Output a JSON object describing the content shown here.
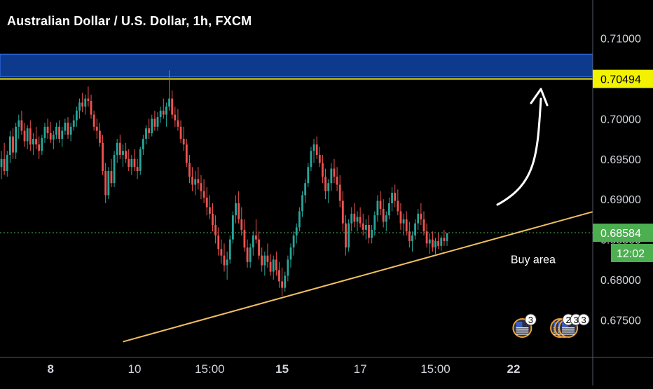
{
  "chart_data": {
    "type": "candlestick",
    "title": "Australian Dollar / U.S. Dollar, 1h, FXCM",
    "y_axis": {
      "position": "right",
      "min": 0.672,
      "max": 0.713,
      "tick_labels": [
        "0.71000",
        "0.70500",
        "0.70000",
        "0.69500",
        "0.69000",
        "0.68500",
        "0.68000",
        "0.67500"
      ],
      "tick_values": [
        0.71,
        0.705,
        0.7,
        0.695,
        0.69,
        0.685,
        0.68,
        0.675
      ]
    },
    "x_axis": {
      "tick_labels": [
        "8",
        "10",
        "15:00",
        "15",
        "17",
        "15:00",
        "22"
      ],
      "tick_index": [
        17,
        46,
        72,
        97,
        124,
        150,
        177
      ],
      "bold": [
        true,
        false,
        false,
        true,
        false,
        false,
        true
      ]
    },
    "bars_total_slots": 203,
    "candles": [
      {
        "o": 0.694,
        "h": 0.696,
        "l": 0.6925,
        "c": 0.695
      },
      {
        "o": 0.695,
        "h": 0.697,
        "l": 0.693,
        "c": 0.6935
      },
      {
        "o": 0.6935,
        "h": 0.696,
        "l": 0.6928,
        "c": 0.6955
      },
      {
        "o": 0.6955,
        "h": 0.6985,
        "l": 0.6945,
        "c": 0.6978
      },
      {
        "o": 0.6978,
        "h": 0.6988,
        "l": 0.695,
        "c": 0.6958
      },
      {
        "o": 0.6958,
        "h": 0.6995,
        "l": 0.695,
        "c": 0.699
      },
      {
        "o": 0.699,
        "h": 0.7005,
        "l": 0.6975,
        "c": 0.6998
      },
      {
        "o": 0.6998,
        "h": 0.701,
        "l": 0.698,
        "c": 0.6985
      },
      {
        "o": 0.6985,
        "h": 0.6995,
        "l": 0.6965,
        "c": 0.6972
      },
      {
        "o": 0.6972,
        "h": 0.6992,
        "l": 0.6962,
        "c": 0.6988
      },
      {
        "o": 0.6988,
        "h": 0.6998,
        "l": 0.696,
        "c": 0.6968
      },
      {
        "o": 0.6968,
        "h": 0.6982,
        "l": 0.6955,
        "c": 0.6975
      },
      {
        "o": 0.6975,
        "h": 0.699,
        "l": 0.6962,
        "c": 0.6968
      },
      {
        "o": 0.6968,
        "h": 0.6978,
        "l": 0.695,
        "c": 0.696
      },
      {
        "o": 0.696,
        "h": 0.698,
        "l": 0.6955,
        "c": 0.6976
      },
      {
        "o": 0.6976,
        "h": 0.6995,
        "l": 0.697,
        "c": 0.699
      },
      {
        "o": 0.699,
        "h": 0.7,
        "l": 0.6975,
        "c": 0.6982
      },
      {
        "o": 0.6982,
        "h": 0.6996,
        "l": 0.697,
        "c": 0.6974
      },
      {
        "o": 0.6974,
        "h": 0.6985,
        "l": 0.6962,
        "c": 0.698
      },
      {
        "o": 0.698,
        "h": 0.6995,
        "l": 0.6975,
        "c": 0.699
      },
      {
        "o": 0.699,
        "h": 0.6998,
        "l": 0.697,
        "c": 0.6975
      },
      {
        "o": 0.6975,
        "h": 0.699,
        "l": 0.6965,
        "c": 0.6985
      },
      {
        "o": 0.6985,
        "h": 0.7,
        "l": 0.698,
        "c": 0.6995
      },
      {
        "o": 0.6995,
        "h": 0.7002,
        "l": 0.6975,
        "c": 0.698
      },
      {
        "o": 0.698,
        "h": 0.6995,
        "l": 0.6972,
        "c": 0.699
      },
      {
        "o": 0.699,
        "h": 0.7005,
        "l": 0.6985,
        "c": 0.6998
      },
      {
        "o": 0.6998,
        "h": 0.7015,
        "l": 0.699,
        "c": 0.701
      },
      {
        "o": 0.701,
        "h": 0.7025,
        "l": 0.7,
        "c": 0.702
      },
      {
        "o": 0.702,
        "h": 0.7032,
        "l": 0.7008,
        "c": 0.7015
      },
      {
        "o": 0.7015,
        "h": 0.703,
        "l": 0.7005,
        "c": 0.7025
      },
      {
        "o": 0.7025,
        "h": 0.704,
        "l": 0.7015,
        "c": 0.7022
      },
      {
        "o": 0.7022,
        "h": 0.703,
        "l": 0.7,
        "c": 0.7005
      },
      {
        "o": 0.7005,
        "h": 0.701,
        "l": 0.6985,
        "c": 0.699
      },
      {
        "o": 0.699,
        "h": 0.7,
        "l": 0.6975,
        "c": 0.6985
      },
      {
        "o": 0.6985,
        "h": 0.6995,
        "l": 0.6965,
        "c": 0.697
      },
      {
        "o": 0.697,
        "h": 0.698,
        "l": 0.693,
        "c": 0.6935
      },
      {
        "o": 0.6935,
        "h": 0.6945,
        "l": 0.6895,
        "c": 0.6905
      },
      {
        "o": 0.6905,
        "h": 0.694,
        "l": 0.69,
        "c": 0.6935
      },
      {
        "o": 0.6935,
        "h": 0.695,
        "l": 0.6915,
        "c": 0.692
      },
      {
        "o": 0.692,
        "h": 0.696,
        "l": 0.6915,
        "c": 0.6955
      },
      {
        "o": 0.6955,
        "h": 0.6975,
        "l": 0.6945,
        "c": 0.697
      },
      {
        "o": 0.697,
        "h": 0.698,
        "l": 0.695,
        "c": 0.6955
      },
      {
        "o": 0.6955,
        "h": 0.6968,
        "l": 0.694,
        "c": 0.696
      },
      {
        "o": 0.696,
        "h": 0.697,
        "l": 0.6945,
        "c": 0.695
      },
      {
        "o": 0.695,
        "h": 0.6962,
        "l": 0.6935,
        "c": 0.694
      },
      {
        "o": 0.694,
        "h": 0.6955,
        "l": 0.693,
        "c": 0.695
      },
      {
        "o": 0.695,
        "h": 0.6962,
        "l": 0.6935,
        "c": 0.694
      },
      {
        "o": 0.694,
        "h": 0.695,
        "l": 0.6925,
        "c": 0.6935
      },
      {
        "o": 0.6935,
        "h": 0.6965,
        "l": 0.693,
        "c": 0.6962
      },
      {
        "o": 0.6962,
        "h": 0.698,
        "l": 0.6955,
        "c": 0.6975
      },
      {
        "o": 0.6975,
        "h": 0.6992,
        "l": 0.6968,
        "c": 0.6988
      },
      {
        "o": 0.6988,
        "h": 0.7,
        "l": 0.6975,
        "c": 0.6982
      },
      {
        "o": 0.6982,
        "h": 0.7005,
        "l": 0.6978,
        "c": 0.7
      },
      {
        "o": 0.7,
        "h": 0.701,
        "l": 0.6985,
        "c": 0.699
      },
      {
        "o": 0.699,
        "h": 0.7008,
        "l": 0.6985,
        "c": 0.7002
      },
      {
        "o": 0.7002,
        "h": 0.7015,
        "l": 0.6995,
        "c": 0.701
      },
      {
        "o": 0.701,
        "h": 0.7025,
        "l": 0.7,
        "c": 0.7005
      },
      {
        "o": 0.7005,
        "h": 0.702,
        "l": 0.699,
        "c": 0.7015
      },
      {
        "o": 0.7015,
        "h": 0.706,
        "l": 0.701,
        "c": 0.7025
      },
      {
        "o": 0.7025,
        "h": 0.7035,
        "l": 0.7,
        "c": 0.7005
      },
      {
        "o": 0.7005,
        "h": 0.7015,
        "l": 0.699,
        "c": 0.6998
      },
      {
        "o": 0.6998,
        "h": 0.7012,
        "l": 0.6985,
        "c": 0.699
      },
      {
        "o": 0.699,
        "h": 0.6998,
        "l": 0.697,
        "c": 0.6975
      },
      {
        "o": 0.6975,
        "h": 0.699,
        "l": 0.696,
        "c": 0.6968
      },
      {
        "o": 0.6968,
        "h": 0.6975,
        "l": 0.694,
        "c": 0.6945
      },
      {
        "o": 0.6945,
        "h": 0.6955,
        "l": 0.692,
        "c": 0.6928
      },
      {
        "o": 0.6928,
        "h": 0.694,
        "l": 0.691,
        "c": 0.6918
      },
      {
        "o": 0.6918,
        "h": 0.6935,
        "l": 0.6905,
        "c": 0.6925
      },
      {
        "o": 0.6925,
        "h": 0.694,
        "l": 0.6912,
        "c": 0.692
      },
      {
        "o": 0.692,
        "h": 0.693,
        "l": 0.69,
        "c": 0.691
      },
      {
        "o": 0.691,
        "h": 0.6925,
        "l": 0.6895,
        "c": 0.6902
      },
      {
        "o": 0.6902,
        "h": 0.6915,
        "l": 0.688,
        "c": 0.689
      },
      {
        "o": 0.689,
        "h": 0.6905,
        "l": 0.6875,
        "c": 0.6882
      },
      {
        "o": 0.6882,
        "h": 0.6895,
        "l": 0.686,
        "c": 0.6868
      },
      {
        "o": 0.6868,
        "h": 0.688,
        "l": 0.6845,
        "c": 0.6855
      },
      {
        "o": 0.6855,
        "h": 0.6865,
        "l": 0.683,
        "c": 0.6838
      },
      {
        "o": 0.6838,
        "h": 0.685,
        "l": 0.682,
        "c": 0.683
      },
      {
        "o": 0.683,
        "h": 0.6845,
        "l": 0.681,
        "c": 0.6818
      },
      {
        "o": 0.6818,
        "h": 0.6835,
        "l": 0.68,
        "c": 0.6825
      },
      {
        "o": 0.6825,
        "h": 0.6855,
        "l": 0.682,
        "c": 0.685
      },
      {
        "o": 0.685,
        "h": 0.6885,
        "l": 0.6845,
        "c": 0.688
      },
      {
        "o": 0.688,
        "h": 0.6905,
        "l": 0.687,
        "c": 0.6895
      },
      {
        "o": 0.6895,
        "h": 0.691,
        "l": 0.687,
        "c": 0.6875
      },
      {
        "o": 0.6875,
        "h": 0.689,
        "l": 0.6855,
        "c": 0.6862
      },
      {
        "o": 0.6862,
        "h": 0.6875,
        "l": 0.6835,
        "c": 0.684
      },
      {
        "o": 0.684,
        "h": 0.685,
        "l": 0.6815,
        "c": 0.6822
      },
      {
        "o": 0.6822,
        "h": 0.6845,
        "l": 0.6815,
        "c": 0.684
      },
      {
        "o": 0.684,
        "h": 0.686,
        "l": 0.683,
        "c": 0.6855
      },
      {
        "o": 0.6855,
        "h": 0.6875,
        "l": 0.6845,
        "c": 0.685
      },
      {
        "o": 0.685,
        "h": 0.686,
        "l": 0.6825,
        "c": 0.683
      },
      {
        "o": 0.683,
        "h": 0.684,
        "l": 0.681,
        "c": 0.6818
      },
      {
        "o": 0.6818,
        "h": 0.6835,
        "l": 0.6805,
        "c": 0.683
      },
      {
        "o": 0.683,
        "h": 0.6845,
        "l": 0.6815,
        "c": 0.6822
      },
      {
        "o": 0.6822,
        "h": 0.6832,
        "l": 0.6805,
        "c": 0.681
      },
      {
        "o": 0.681,
        "h": 0.683,
        "l": 0.68,
        "c": 0.6825
      },
      {
        "o": 0.6825,
        "h": 0.6835,
        "l": 0.6805,
        "c": 0.6812
      },
      {
        "o": 0.6812,
        "h": 0.6822,
        "l": 0.679,
        "c": 0.6798
      },
      {
        "o": 0.6798,
        "h": 0.6815,
        "l": 0.678,
        "c": 0.679
      },
      {
        "o": 0.679,
        "h": 0.681,
        "l": 0.6785,
        "c": 0.6805
      },
      {
        "o": 0.6805,
        "h": 0.683,
        "l": 0.6798,
        "c": 0.6825
      },
      {
        "o": 0.6825,
        "h": 0.6845,
        "l": 0.6815,
        "c": 0.684
      },
      {
        "o": 0.684,
        "h": 0.686,
        "l": 0.683,
        "c": 0.6855
      },
      {
        "o": 0.6855,
        "h": 0.687,
        "l": 0.6845,
        "c": 0.6865
      },
      {
        "o": 0.6865,
        "h": 0.689,
        "l": 0.686,
        "c": 0.6885
      },
      {
        "o": 0.6885,
        "h": 0.691,
        "l": 0.6878,
        "c": 0.6905
      },
      {
        "o": 0.6905,
        "h": 0.6925,
        "l": 0.6895,
        "c": 0.692
      },
      {
        "o": 0.692,
        "h": 0.6945,
        "l": 0.6915,
        "c": 0.694
      },
      {
        "o": 0.694,
        "h": 0.6965,
        "l": 0.6935,
        "c": 0.696
      },
      {
        "o": 0.696,
        "h": 0.6975,
        "l": 0.6945,
        "c": 0.6968
      },
      {
        "o": 0.6968,
        "h": 0.6978,
        "l": 0.695,
        "c": 0.6955
      },
      {
        "o": 0.6955,
        "h": 0.6965,
        "l": 0.694,
        "c": 0.6945
      },
      {
        "o": 0.6945,
        "h": 0.6955,
        "l": 0.692,
        "c": 0.6928
      },
      {
        "o": 0.6928,
        "h": 0.6938,
        "l": 0.69,
        "c": 0.691
      },
      {
        "o": 0.691,
        "h": 0.6925,
        "l": 0.6895,
        "c": 0.692
      },
      {
        "o": 0.692,
        "h": 0.6945,
        "l": 0.691,
        "c": 0.6938
      },
      {
        "o": 0.6938,
        "h": 0.695,
        "l": 0.692,
        "c": 0.6928
      },
      {
        "o": 0.6928,
        "h": 0.694,
        "l": 0.691,
        "c": 0.6918
      },
      {
        "o": 0.6918,
        "h": 0.693,
        "l": 0.689,
        "c": 0.6898
      },
      {
        "o": 0.6898,
        "h": 0.691,
        "l": 0.686,
        "c": 0.687
      },
      {
        "o": 0.687,
        "h": 0.688,
        "l": 0.683,
        "c": 0.684
      },
      {
        "o": 0.684,
        "h": 0.6875,
        "l": 0.6835,
        "c": 0.687
      },
      {
        "o": 0.687,
        "h": 0.689,
        "l": 0.686,
        "c": 0.6882
      },
      {
        "o": 0.6882,
        "h": 0.6895,
        "l": 0.6865,
        "c": 0.6872
      },
      {
        "o": 0.6872,
        "h": 0.6885,
        "l": 0.686,
        "c": 0.6878
      },
      {
        "o": 0.6878,
        "h": 0.689,
        "l": 0.6865,
        "c": 0.687
      },
      {
        "o": 0.687,
        "h": 0.6882,
        "l": 0.6855,
        "c": 0.6862
      },
      {
        "o": 0.6862,
        "h": 0.6875,
        "l": 0.685,
        "c": 0.6868
      },
      {
        "o": 0.6868,
        "h": 0.688,
        "l": 0.6845,
        "c": 0.6852
      },
      {
        "o": 0.6852,
        "h": 0.6868,
        "l": 0.6845,
        "c": 0.6862
      },
      {
        "o": 0.6862,
        "h": 0.6885,
        "l": 0.6855,
        "c": 0.688
      },
      {
        "o": 0.688,
        "h": 0.6905,
        "l": 0.6872,
        "c": 0.6898
      },
      {
        "o": 0.6898,
        "h": 0.691,
        "l": 0.688,
        "c": 0.6888
      },
      {
        "o": 0.6888,
        "h": 0.69,
        "l": 0.6865,
        "c": 0.6872
      },
      {
        "o": 0.6872,
        "h": 0.6885,
        "l": 0.686,
        "c": 0.688
      },
      {
        "o": 0.688,
        "h": 0.6902,
        "l": 0.6875,
        "c": 0.6895
      },
      {
        "o": 0.6895,
        "h": 0.6915,
        "l": 0.6885,
        "c": 0.6908
      },
      {
        "o": 0.6908,
        "h": 0.6918,
        "l": 0.689,
        "c": 0.6898
      },
      {
        "o": 0.6898,
        "h": 0.6912,
        "l": 0.688,
        "c": 0.6885
      },
      {
        "o": 0.6885,
        "h": 0.6895,
        "l": 0.6862,
        "c": 0.687
      },
      {
        "o": 0.687,
        "h": 0.6882,
        "l": 0.6855,
        "c": 0.6875
      },
      {
        "o": 0.6875,
        "h": 0.6885,
        "l": 0.6855,
        "c": 0.686
      },
      {
        "o": 0.686,
        "h": 0.6872,
        "l": 0.684,
        "c": 0.6848
      },
      {
        "o": 0.6848,
        "h": 0.686,
        "l": 0.6835,
        "c": 0.6855
      },
      {
        "o": 0.6855,
        "h": 0.6875,
        "l": 0.685,
        "c": 0.687
      },
      {
        "o": 0.687,
        "h": 0.6888,
        "l": 0.6862,
        "c": 0.6882
      },
      {
        "o": 0.6882,
        "h": 0.6895,
        "l": 0.6868,
        "c": 0.6875
      },
      {
        "o": 0.6875,
        "h": 0.6885,
        "l": 0.6855,
        "c": 0.686
      },
      {
        "o": 0.686,
        "h": 0.687,
        "l": 0.684,
        "c": 0.6845
      },
      {
        "o": 0.6845,
        "h": 0.6858,
        "l": 0.6832,
        "c": 0.685
      },
      {
        "o": 0.685,
        "h": 0.686,
        "l": 0.6835,
        "c": 0.684
      },
      {
        "o": 0.684,
        "h": 0.6852,
        "l": 0.6832,
        "c": 0.6848
      },
      {
        "o": 0.6848,
        "h": 0.6858,
        "l": 0.6838,
        "c": 0.6842
      },
      {
        "o": 0.6842,
        "h": 0.6855,
        "l": 0.6836,
        "c": 0.6852
      },
      {
        "o": 0.6852,
        "h": 0.6862,
        "l": 0.6842,
        "c": 0.6848
      },
      {
        "o": 0.6848,
        "h": 0.6858,
        "l": 0.6842,
        "c": 0.6858
      }
    ],
    "resistance_zone": {
      "top": 0.708,
      "bottom": 0.7052,
      "fill": "#0d3a8c",
      "border": "#2d62d4"
    },
    "resistance_line": {
      "price": 0.70494,
      "color": "#e8e82a"
    },
    "current_price": {
      "price": 0.68584,
      "label": "0.68584",
      "color": "#4caf50"
    },
    "resistance_price_label": {
      "price": 0.70494,
      "label": "0.70494",
      "bg": "#f2f200"
    },
    "countdown": {
      "label": "12:02",
      "bg": "#4caf50"
    },
    "trendline": {
      "start": {
        "index": 42,
        "price": 0.6723
      },
      "end": {
        "index": 210,
        "price": 0.689
      },
      "color": "#f0c060"
    },
    "annotation": {
      "text": "Buy area",
      "index": 176,
      "price": 0.6825
    },
    "arrow": {
      "color": "#ffffff"
    },
    "event_markers": [
      {
        "index": 180,
        "badges": [
          "3"
        ]
      },
      {
        "index": 193,
        "badges": [
          "2",
          "3",
          "3"
        ]
      },
      {
        "index": 210,
        "badges": []
      }
    ],
    "colors": {
      "up": "#26a69a",
      "down": "#ef5350",
      "background": "#000000",
      "axis_text": "#d1d4dc"
    }
  }
}
